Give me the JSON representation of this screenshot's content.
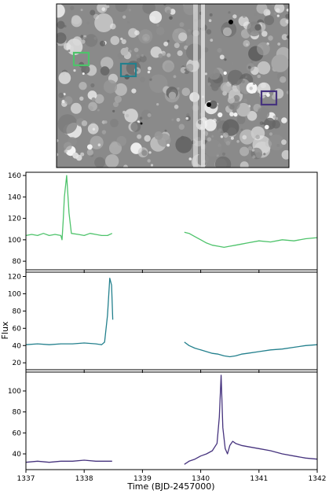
{
  "figure": {
    "xlabel": "Time (BJD-2457000)",
    "ylabel": "Flux"
  },
  "image_panel": {
    "apertures": [
      {
        "color": "#4ec36b"
      },
      {
        "color": "#23808d"
      },
      {
        "color": "#46337e"
      }
    ]
  },
  "chart_data": [
    {
      "type": "line",
      "series": [
        {
          "color": "#4ec36b",
          "x": [
            1337.0,
            1337.1,
            1337.2,
            1337.3,
            1337.4,
            1337.5,
            1337.6,
            1337.62,
            1337.64,
            1337.66,
            1337.7,
            1337.74,
            1337.78,
            1337.9,
            1338.0,
            1338.1,
            1338.2,
            1338.3,
            1338.4,
            1338.48,
            null,
            1339.72,
            1339.8,
            1339.9,
            1340.0,
            1340.1,
            1340.2,
            1340.3,
            1340.4,
            1340.5,
            1340.6,
            1340.7,
            1340.8,
            1341.0,
            1341.2,
            1341.4,
            1341.6,
            1341.8,
            1342.0
          ],
          "y": [
            104,
            105,
            104,
            106,
            104,
            105,
            104,
            100,
            118,
            140,
            160,
            125,
            106,
            105,
            104,
            106,
            105,
            104,
            104,
            106,
            null,
            107,
            106,
            103,
            100,
            97,
            95,
            94,
            93,
            94,
            95,
            96,
            97,
            99,
            98,
            100,
            99,
            101,
            102
          ]
        }
      ],
      "xlim": [
        1337,
        1342
      ],
      "ylim": [
        72,
        163
      ],
      "yticks": [
        80,
        100,
        120,
        140,
        160
      ],
      "xticks": [
        1337,
        1338,
        1339,
        1340,
        1341,
        1342
      ],
      "xticklabels": [
        "",
        "",
        "",
        "",
        "",
        ""
      ]
    },
    {
      "type": "line",
      "series": [
        {
          "color": "#23808d",
          "x": [
            1337.0,
            1337.2,
            1337.4,
            1337.6,
            1337.8,
            1338.0,
            1338.2,
            1338.3,
            1338.35,
            1338.4,
            1338.44,
            1338.47,
            1338.49,
            null,
            1339.72,
            1339.8,
            1339.9,
            1340.0,
            1340.1,
            1340.2,
            1340.3,
            1340.4,
            1340.5,
            1340.6,
            1340.7,
            1340.8,
            1341.0,
            1341.2,
            1341.4,
            1341.6,
            1341.8,
            1342.0
          ],
          "y": [
            41,
            42,
            41,
            42,
            42,
            43,
            42,
            41,
            44,
            75,
            118,
            110,
            70,
            null,
            44,
            40,
            37,
            35,
            33,
            31,
            30,
            28,
            27,
            28,
            30,
            31,
            33,
            35,
            36,
            38,
            40,
            41
          ]
        }
      ],
      "xlim": [
        1337,
        1342
      ],
      "ylim": [
        12,
        125
      ],
      "yticks": [
        20,
        40,
        60,
        80,
        100,
        120
      ],
      "xticks": [
        1337,
        1338,
        1339,
        1340,
        1341,
        1342
      ],
      "xticklabels": [
        "",
        "",
        "",
        "",
        "",
        ""
      ]
    },
    {
      "type": "line",
      "series": [
        {
          "color": "#46337e",
          "x": [
            1337.0,
            1337.2,
            1337.4,
            1337.6,
            1337.8,
            1338.0,
            1338.2,
            1338.4,
            1338.48,
            null,
            1339.72,
            1339.8,
            1339.9,
            1340.0,
            1340.1,
            1340.2,
            1340.28,
            1340.32,
            1340.35,
            1340.38,
            1340.42,
            1340.46,
            1340.5,
            1340.55,
            1340.6,
            1340.7,
            1340.8,
            1341.0,
            1341.2,
            1341.4,
            1341.6,
            1341.8,
            1342.0
          ],
          "y": [
            32,
            33,
            32,
            33,
            33,
            34,
            33,
            33,
            33,
            null,
            30,
            33,
            35,
            38,
            40,
            43,
            50,
            75,
            115,
            65,
            45,
            40,
            48,
            52,
            50,
            48,
            47,
            45,
            43,
            40,
            38,
            36,
            35
          ]
        }
      ],
      "xlim": [
        1337,
        1342
      ],
      "ylim": [
        25,
        118
      ],
      "yticks": [
        40,
        60,
        80,
        100
      ],
      "xticks": [
        1337,
        1338,
        1339,
        1340,
        1341,
        1342
      ],
      "xticklabels": [
        "1337",
        "1338",
        "1339",
        "1340",
        "1341",
        "1342"
      ]
    }
  ]
}
